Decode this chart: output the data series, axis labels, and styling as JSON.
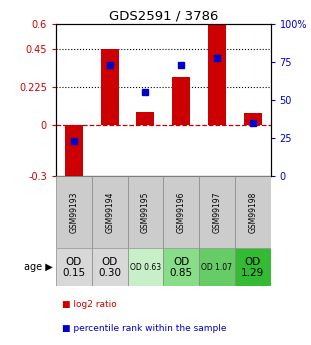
{
  "title": "GDS2591 / 3786",
  "samples": [
    "GSM99193",
    "GSM99194",
    "GSM99195",
    "GSM99196",
    "GSM99197",
    "GSM99198"
  ],
  "log2_ratio": [
    -0.35,
    0.455,
    0.08,
    0.285,
    0.6,
    0.075
  ],
  "percentile_rank": [
    23.0,
    73.0,
    55.0,
    73.0,
    78.0,
    35.0
  ],
  "ylim_left": [
    -0.3,
    0.6
  ],
  "ylim_right": [
    0,
    100
  ],
  "yticks_left": [
    -0.3,
    0,
    0.225,
    0.45,
    0.6
  ],
  "yticks_left_labels": [
    "-0.3",
    "0",
    "0.225",
    "0.45",
    "0.6"
  ],
  "yticks_right": [
    0,
    25,
    50,
    75,
    100
  ],
  "yticks_right_labels": [
    "0",
    "25",
    "50",
    "75",
    "100%"
  ],
  "hlines": [
    0.45,
    0.225
  ],
  "bar_color": "#cc0000",
  "dot_color": "#0000cc",
  "zero_line_color": "#cc0000",
  "age_labels": [
    "OD\n0.15",
    "OD\n0.30",
    "OD 0.63",
    "OD\n0.85",
    "OD 1.07",
    "OD\n1.29"
  ],
  "age_colors": [
    "#d8d8d8",
    "#d8d8d8",
    "#c8f0c8",
    "#88dd88",
    "#66cc66",
    "#33bb33"
  ],
  "age_fontsize_large": [
    true,
    true,
    false,
    true,
    false,
    true
  ],
  "legend_red": "log2 ratio",
  "legend_blue": "percentile rank within the sample",
  "bg_color": "#ffffff",
  "sample_box_color": "#cccccc",
  "bar_color_red": "#cc0000",
  "dot_color_blue": "#0000cc"
}
